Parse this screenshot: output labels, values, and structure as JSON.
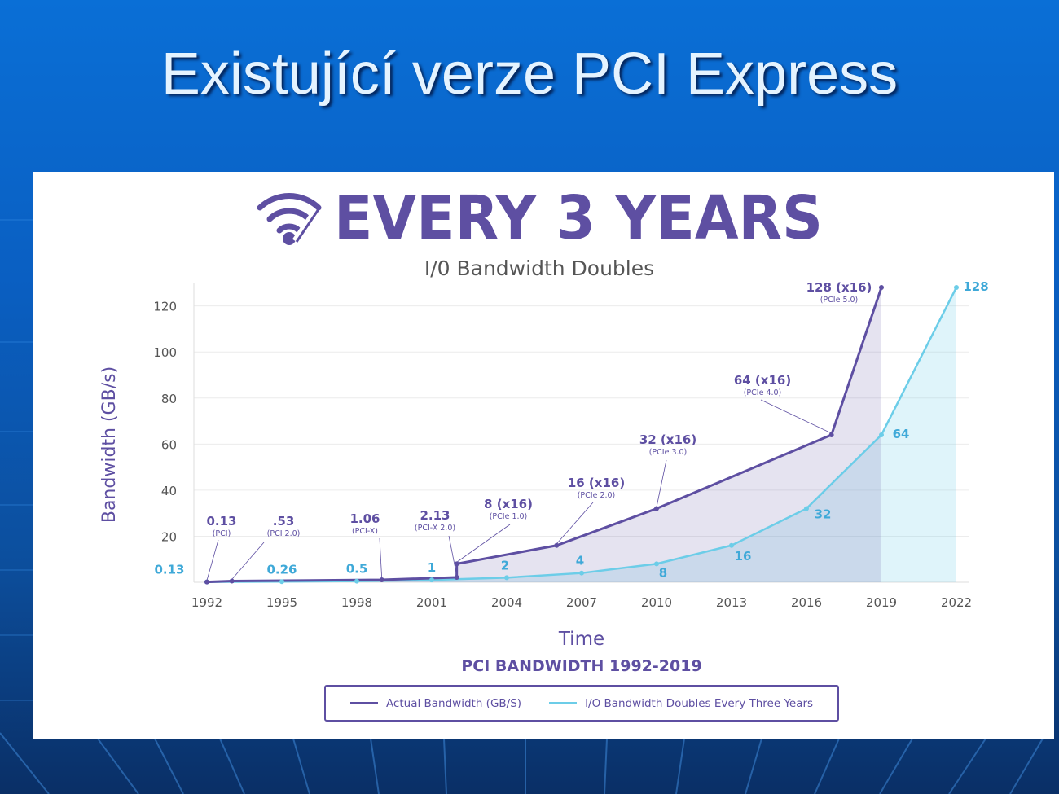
{
  "slide": {
    "title": "Existující verze PCI Express"
  },
  "infographic": {
    "headline": "EVERY 3 YEARS",
    "subtitle": "I/0 Bandwidth Doubles",
    "caption": "PCI BANDWIDTH 1992-2019",
    "icon": "wifi-icon"
  },
  "colors": {
    "actual": "#5e4fa2",
    "doubling": "#6ccde8",
    "doubling_label": "#3fa9d8",
    "axis_text": "#555555",
    "title_purple": "#5e4fa2"
  },
  "chart_data": {
    "type": "line",
    "xlabel": "Time",
    "ylabel": "Bandwidth (GB/s)",
    "xlim": [
      1992,
      2022
    ],
    "ylim": [
      0,
      128
    ],
    "x_ticks": [
      "1992",
      "1995",
      "1998",
      "2001",
      "2004",
      "2007",
      "2010",
      "2013",
      "2016",
      "2019",
      "2022"
    ],
    "y_ticks": [
      "20",
      "40",
      "60",
      "80",
      "100",
      "120"
    ],
    "grid": true,
    "legend_position": "bottom",
    "series": [
      {
        "name": "Actual Bandwidth (GB/S)",
        "type": "area",
        "points": [
          {
            "x": 1992,
            "y": 0.13
          },
          {
            "x": 1993,
            "y": 0.53
          },
          {
            "x": 1999,
            "y": 1.06
          },
          {
            "x": 2002,
            "y": 2.13
          },
          {
            "x": 2002,
            "y": 8
          },
          {
            "x": 2006,
            "y": 16
          },
          {
            "x": 2010,
            "y": 32
          },
          {
            "x": 2017,
            "y": 64
          },
          {
            "x": 2019,
            "y": 128
          }
        ],
        "annotations": [
          {
            "label": "0.13",
            "sub": "(PCI)"
          },
          {
            "label": ".53",
            "sub": "(PCI 2.0)"
          },
          {
            "label": "1.06",
            "sub": "(PCI-X)"
          },
          {
            "label": "2.13",
            "sub": "(PCI-X 2.0)"
          },
          {
            "label": "8 (x16)",
            "sub": "(PCIe 1.0)"
          },
          {
            "label": "16 (x16)",
            "sub": "(PCIe 2.0)"
          },
          {
            "label": "32 (x16)",
            "sub": "(PCIe 3.0)"
          },
          {
            "label": "64 (x16)",
            "sub": "(PCIe 4.0)"
          },
          {
            "label": "128 (x16)",
            "sub": "(PCIe 5.0)"
          }
        ]
      },
      {
        "name": "I/O Bandwidth Doubles Every Three Years",
        "type": "area",
        "points": [
          {
            "x": 1992,
            "y": 0.13
          },
          {
            "x": 1995,
            "y": 0.26
          },
          {
            "x": 1998,
            "y": 0.5
          },
          {
            "x": 2001,
            "y": 1
          },
          {
            "x": 2004,
            "y": 2
          },
          {
            "x": 2007,
            "y": 4
          },
          {
            "x": 2010,
            "y": 8
          },
          {
            "x": 2013,
            "y": 16
          },
          {
            "x": 2016,
            "y": 32
          },
          {
            "x": 2019,
            "y": 64
          },
          {
            "x": 2022,
            "y": 128
          }
        ],
        "labels": [
          "0.13",
          "0.26",
          "0.5",
          "1",
          "2",
          "4",
          "8",
          "16",
          "32",
          "64",
          "128"
        ]
      }
    ]
  }
}
